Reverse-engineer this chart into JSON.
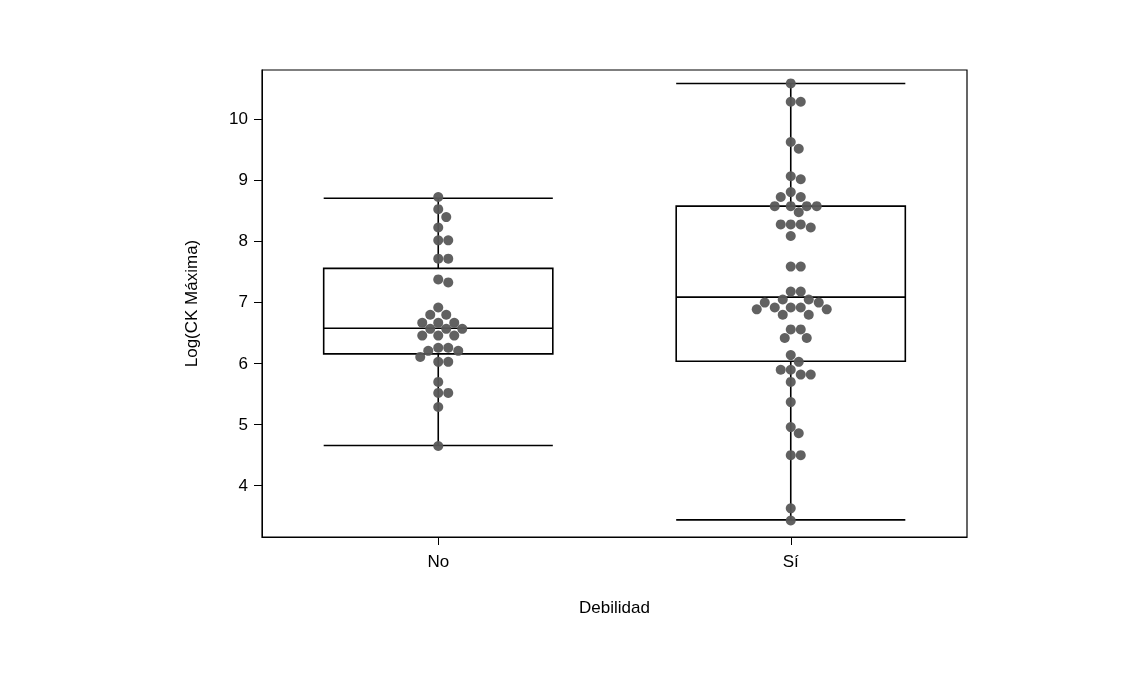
{
  "chart_data": {
    "type": "box",
    "xlabel": "Debilidad",
    "ylabel": "Log(CK Máxima)",
    "categories": [
      "No",
      "Sí"
    ],
    "boxes": [
      {
        "low": 4.65,
        "q1": 6.15,
        "median": 6.57,
        "q3": 7.55,
        "high": 8.7
      },
      {
        "low": 3.43,
        "q1": 6.03,
        "median": 7.08,
        "q3": 8.57,
        "high": 10.58
      }
    ],
    "color": "#000000",
    "series": [
      {
        "type": "scatter",
        "color": "#595959",
        "x": [
          "No",
          "No",
          "No",
          "No",
          "No",
          "No",
          "No",
          "No",
          "No",
          "No",
          "No",
          "No",
          "No",
          "No",
          "No",
          "No",
          "No",
          "No",
          "No",
          "No",
          "No",
          "No",
          "No",
          "No",
          "No",
          "No",
          "No",
          "No",
          "No",
          "No",
          "No",
          "No",
          "No",
          "No"
        ],
        "values": [
          8.72,
          8.52,
          8.39,
          8.22,
          8.01,
          8.01,
          7.71,
          7.71,
          7.37,
          7.32,
          6.91,
          6.79,
          6.79,
          6.66,
          6.66,
          6.66,
          6.56,
          6.56,
          6.56,
          6.45,
          6.45,
          6.45,
          6.25,
          6.25,
          6.2,
          6.2,
          6.1,
          6.02,
          6.02,
          5.69,
          5.51,
          5.51,
          5.28,
          4.64
        ]
      },
      {
        "type": "scatter",
        "color": "#595959",
        "x": [
          "Sí",
          "Sí",
          "Sí",
          "Sí",
          "Sí",
          "Sí",
          "Sí",
          "Sí",
          "Sí",
          "Sí",
          "Sí",
          "Sí",
          "Sí",
          "Sí",
          "Sí",
          "Sí",
          "Sí",
          "Sí",
          "Sí",
          "Sí",
          "Sí",
          "Sí",
          "Sí",
          "Sí",
          "Sí",
          "Sí",
          "Sí",
          "Sí",
          "Sí",
          "Sí",
          "Sí",
          "Sí",
          "Sí",
          "Sí",
          "Sí",
          "Sí",
          "Sí",
          "Sí",
          "Sí",
          "Sí",
          "Sí",
          "Sí",
          "Sí",
          "Sí",
          "Sí",
          "Sí",
          "Sí",
          "Sí",
          "Sí",
          "Sí",
          "Sí",
          "Sí",
          "Sí"
        ],
        "values": [
          10.58,
          10.28,
          10.28,
          9.62,
          9.51,
          9.06,
          9.01,
          8.8,
          8.72,
          8.72,
          8.57,
          8.57,
          8.57,
          8.57,
          8.47,
          8.27,
          8.27,
          8.27,
          8.22,
          8.08,
          7.58,
          7.58,
          7.17,
          7.17,
          7.04,
          7.04,
          6.91,
          6.91,
          6.91,
          6.99,
          6.99,
          6.88,
          6.88,
          6.79,
          6.79,
          6.55,
          6.55,
          6.41,
          6.41,
          6.13,
          6.02,
          5.89,
          5.89,
          5.81,
          5.81,
          5.69,
          5.36,
          4.95,
          4.85,
          4.49,
          4.49,
          3.62,
          3.42
        ]
      }
    ],
    "marker": "circle",
    "ylim": [
      3.15,
      10.8
    ],
    "yticks": [
      4,
      5,
      6,
      7,
      8,
      9,
      10
    ],
    "grid": false,
    "legend": false
  }
}
